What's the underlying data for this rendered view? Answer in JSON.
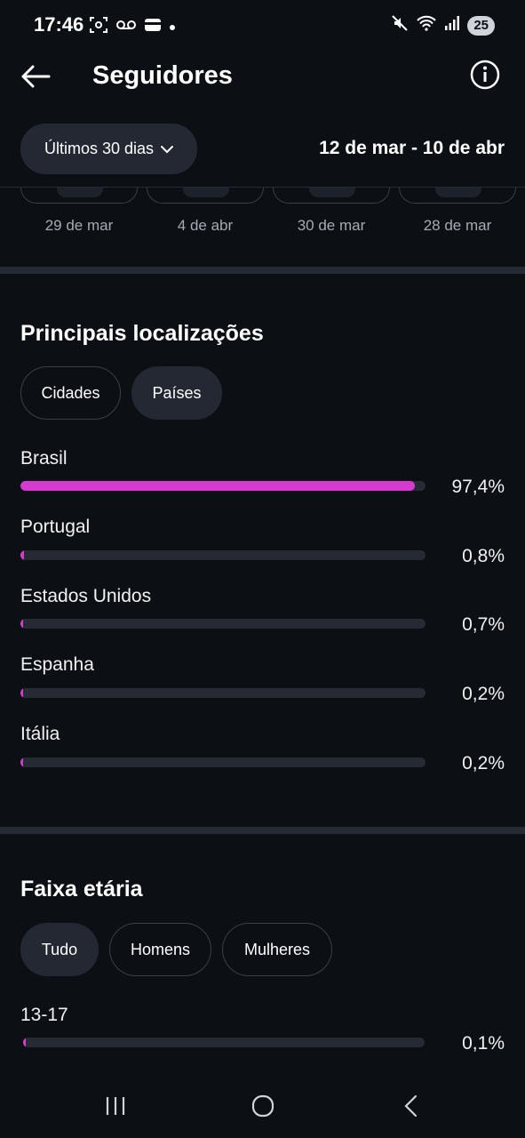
{
  "status_bar": {
    "time": "17:46",
    "battery": "25",
    "icons": [
      "screenshot-icon",
      "voicemail-icon",
      "wallet-icon",
      "dot-icon",
      "mute-icon",
      "wifi-icon",
      "signal-icon"
    ]
  },
  "header": {
    "title": "Seguidores",
    "back_icon": "arrow-left-icon",
    "info_icon": "info-icon"
  },
  "filter": {
    "period_label": "Últimos 30 dias",
    "date_range": "12 de mar - 10 de abr"
  },
  "posts": [
    {
      "date": "29 de mar"
    },
    {
      "date": "4 de abr"
    },
    {
      "date": "30 de mar"
    },
    {
      "date": "28 de mar"
    }
  ],
  "locations": {
    "title": "Principais localizações",
    "tabs": [
      {
        "label": "Cidades",
        "active": false
      },
      {
        "label": "Países",
        "active": true
      }
    ],
    "rows": [
      {
        "label": "Brasil",
        "value": "97,4%",
        "fraction": 0.974
      },
      {
        "label": "Portugal",
        "value": "0,8%",
        "fraction": 0.008
      },
      {
        "label": "Estados Unidos",
        "value": "0,7%",
        "fraction": 0.007
      },
      {
        "label": "Espanha",
        "value": "0,2%",
        "fraction": 0.002
      },
      {
        "label": "Itália",
        "value": "0,2%",
        "fraction": 0.002
      }
    ]
  },
  "age": {
    "title": "Faixa etária",
    "tabs": [
      {
        "label": "Tudo",
        "active": true
      },
      {
        "label": "Homens",
        "active": false
      },
      {
        "label": "Mulheres",
        "active": false
      }
    ],
    "rows": [
      {
        "label": "13-17",
        "value": "0,1%",
        "fraction": 0.001
      }
    ]
  },
  "colors": {
    "accent": "#d63bd0",
    "background": "#0c0f14",
    "chip_active": "#232833",
    "track": "#262b33"
  },
  "nav": {
    "icons": [
      "recents-icon",
      "home-icon",
      "back-icon"
    ]
  }
}
